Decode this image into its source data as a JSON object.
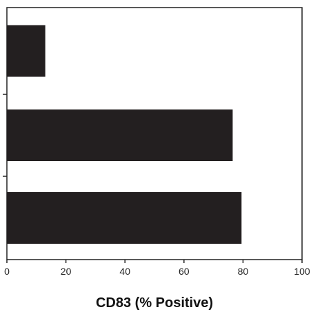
{
  "chart_data": {
    "type": "bar",
    "orientation": "horizontal",
    "categories": [
      "",
      "",
      ""
    ],
    "values": [
      13,
      76.5,
      79.5
    ],
    "xlabel": "CD83 (% Positive)",
    "ylabel": "",
    "xlim": [
      0,
      100
    ],
    "xticks": [
      "0",
      "20",
      "40",
      "60",
      "80",
      "100"
    ],
    "grid": false,
    "legend": "none",
    "colors": {
      "bar": "#231f20",
      "axis": "#222222",
      "background": "#ffffff"
    }
  }
}
